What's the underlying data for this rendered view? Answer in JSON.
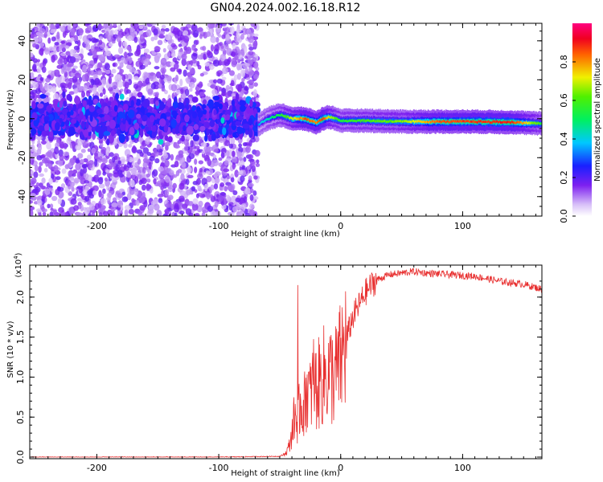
{
  "title": "GN04.2024.002.16.18.R12",
  "colors": {
    "snr_line": "#e83030",
    "frame": "#000000"
  },
  "chart_data": [
    {
      "type": "heatmap",
      "xlabel": "Height of straight line (km)",
      "ylabel": "Frequency (Hz)",
      "xlim": [
        -255,
        165
      ],
      "ylim": [
        -50,
        49
      ],
      "xticks": [
        -200,
        -100,
        0,
        100
      ],
      "yticks": [
        -40,
        -20,
        0,
        20,
        40
      ],
      "xtick_labels": [
        "-200",
        "-100",
        "0",
        "100"
      ],
      "ytick_labels": [
        "-40",
        "-20",
        "0",
        "20",
        "40"
      ],
      "grid": false,
      "colorbar": {
        "label": "Normalized spectral amplitude",
        "range": [
          0.0,
          1.0
        ],
        "ticks": [
          0.0,
          0.2,
          0.4,
          0.6,
          0.8
        ],
        "tick_labels": [
          "0.0",
          "0.2",
          "0.4",
          "0.6",
          "0.8"
        ],
        "colormap": "rainbow (white-lavender-blue-cyan-green-yellow-red-magenta)"
      },
      "regions": [
        {
          "name": "noise",
          "x_range": [
            -255,
            -68
          ],
          "description_freq_spread": [
            -50,
            49
          ],
          "band_center": 0,
          "band_halfwidth": 8,
          "level": 0.15
        },
        {
          "name": "signal",
          "x_range": [
            -68,
            165
          ],
          "band_center": 0,
          "band_halfwidth": 3,
          "level": 0.8
        }
      ],
      "ridge": {
        "x": [
          -68,
          -60,
          -50,
          -40,
          -30,
          -20,
          -15,
          -10,
          0,
          20,
          50,
          80,
          110,
          140,
          165
        ],
        "freq": [
          -3,
          0,
          2,
          0,
          0,
          -2,
          0,
          1,
          -1,
          -1,
          -1.5,
          -1.5,
          -1.5,
          -1.8,
          -2.5
        ],
        "amplitude": [
          0.35,
          0.45,
          0.55,
          0.7,
          0.85,
          0.8,
          0.9,
          0.7,
          0.55,
          0.6,
          0.65,
          0.85,
          0.88,
          0.9,
          0.55
        ]
      }
    },
    {
      "type": "line",
      "xlabel": "Height of straight line (km)",
      "ylabel": "SNR (10 * v/v)",
      "y_multiplier_label": "(x10",
      "y_multiplier_exp": "4",
      "xlim": [
        -255,
        165
      ],
      "ylim": [
        -0.02,
        2.4
      ],
      "xticks": [
        -200,
        -100,
        0,
        100
      ],
      "yticks": [
        0.0,
        0.5,
        1.0,
        1.5,
        2.0
      ],
      "xtick_labels": [
        "-200",
        "-100",
        "0",
        "100"
      ],
      "ytick_labels": [
        "0.0",
        "0.5",
        "1.0",
        "1.5",
        "2.0"
      ],
      "grid": false,
      "series": [
        {
          "x": [
            -255,
            -100,
            -50,
            -45,
            -42,
            -40,
            -38,
            -35,
            -33,
            -30,
            -28,
            -25,
            -22,
            -20,
            -15,
            -10,
            -5,
            0,
            5,
            10,
            15,
            20,
            25,
            30,
            40,
            50,
            60,
            70,
            80,
            90,
            100,
            110,
            120,
            130,
            140,
            150,
            160,
            165
          ],
          "values": [
            0.0,
            0.0,
            0.01,
            0.05,
            0.15,
            0.3,
            0.5,
            0.45,
            0.7,
            0.6,
            0.9,
            0.75,
            1.0,
            0.85,
            1.0,
            1.05,
            1.0,
            1.2,
            1.5,
            1.75,
            1.9,
            2.05,
            2.15,
            2.22,
            2.28,
            2.3,
            2.32,
            2.3,
            2.29,
            2.28,
            2.27,
            2.26,
            2.23,
            2.2,
            2.18,
            2.16,
            2.12,
            2.1
          ]
        }
      ]
    }
  ]
}
